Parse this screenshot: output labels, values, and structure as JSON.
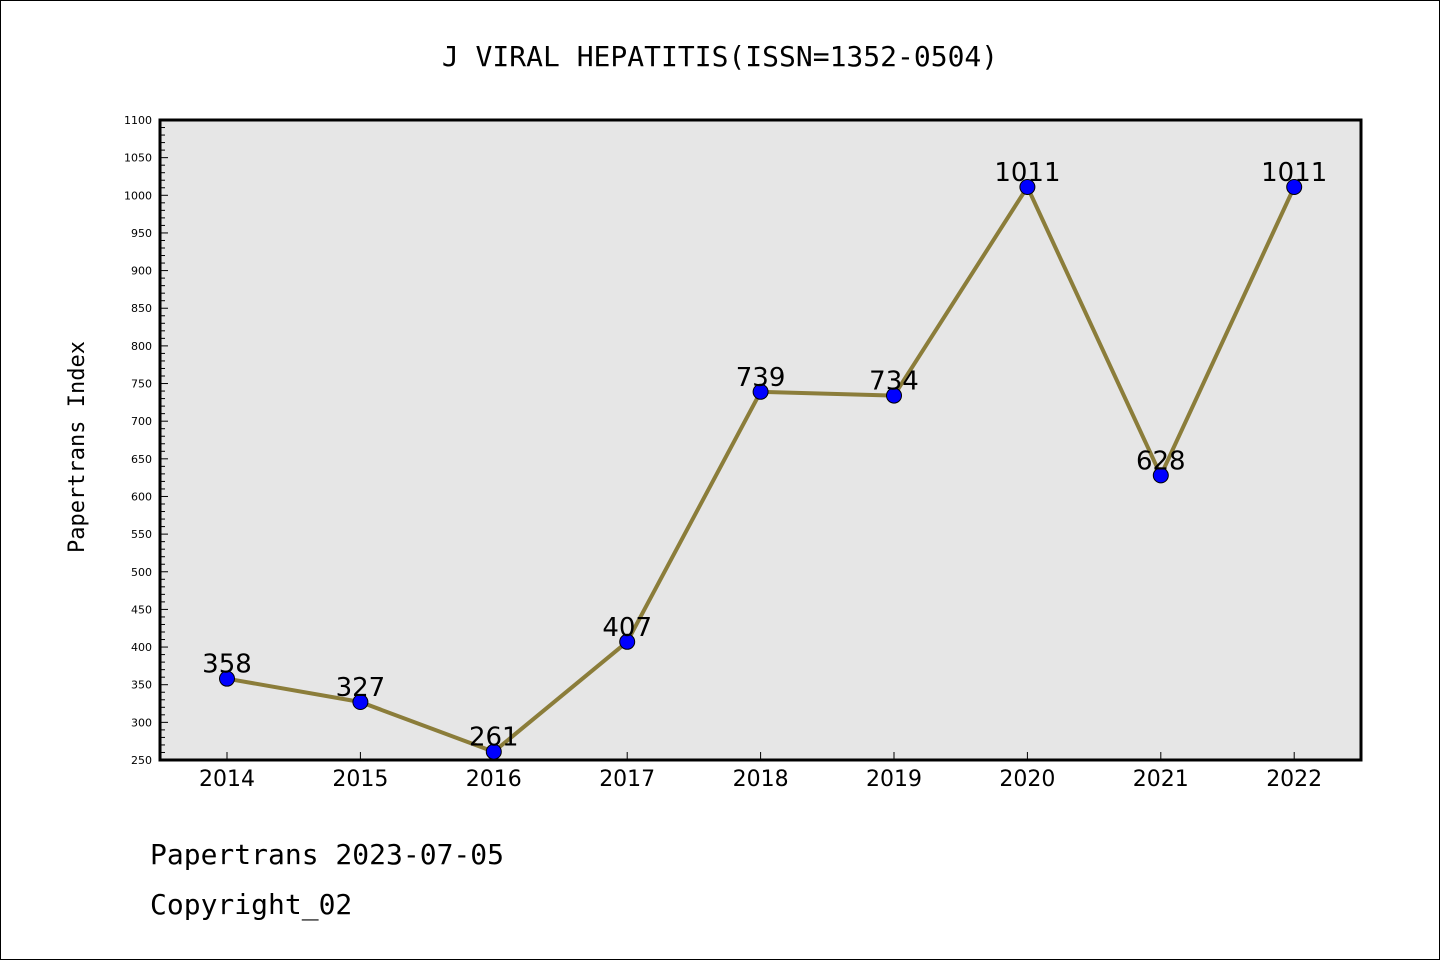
{
  "chart_data": {
    "type": "line",
    "title": "J VIRAL HEPATITIS(ISSN=1352-0504)",
    "xlabel": "",
    "ylabel": "Papertrans Index",
    "categories": [
      "2014",
      "2015",
      "2016",
      "2017",
      "2018",
      "2019",
      "2020",
      "2021",
      "2022"
    ],
    "series": [
      {
        "values": [
          358,
          327,
          261,
          407,
          739,
          734,
          1011,
          628,
          1011
        ]
      }
    ],
    "data_labels": [
      "358",
      "327",
      "261",
      "407",
      "739",
      "734",
      "1011",
      "628",
      "1011"
    ],
    "ylim": [
      250,
      1100
    ],
    "yticks": [
      "250",
      "300",
      "350",
      "400",
      "450",
      "500",
      "550",
      "600",
      "650",
      "700",
      "750",
      "800",
      "850",
      "900",
      "950",
      "1000",
      "1050",
      "1100"
    ],
    "grid": false,
    "legend": "none",
    "colors": {
      "line": "#8b7d3a",
      "marker": "#0000ff",
      "plot_bg": "#e6e6e6"
    }
  },
  "footer": {
    "line1": "Papertrans 2023-07-05",
    "line2": "Copyright_02"
  }
}
